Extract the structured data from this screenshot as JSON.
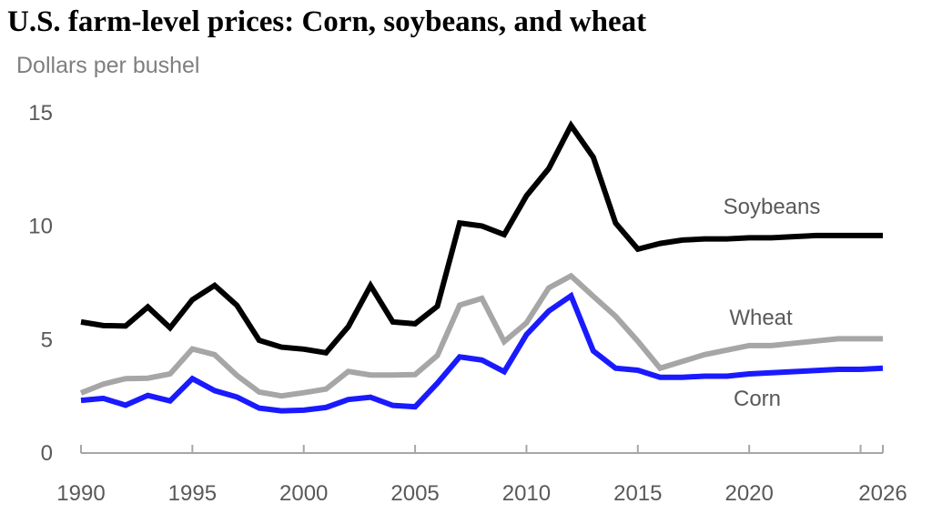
{
  "chart_data": {
    "type": "line",
    "title": "U.S. farm-level prices: Corn, soybeans, and wheat",
    "ylabel": "Dollars per bushel",
    "xlabel": "",
    "ylim": [
      0,
      15
    ],
    "xlim": [
      1990,
      2026
    ],
    "yticks": [
      "0",
      "5",
      "10",
      "15"
    ],
    "xticks": [
      "1990",
      "1995",
      "2000",
      "2005",
      "2010",
      "2015",
      "2020",
      "2026"
    ],
    "grid": false,
    "legend": "inline labels",
    "x": [
      1990,
      1991,
      1992,
      1993,
      1994,
      1995,
      1996,
      1997,
      1998,
      1999,
      2000,
      2001,
      2002,
      2003,
      2004,
      2005,
      2006,
      2007,
      2008,
      2009,
      2010,
      2011,
      2012,
      2013,
      2014,
      2015,
      2016,
      2017,
      2018,
      2019,
      2020,
      2021,
      2022,
      2023,
      2024,
      2025,
      2026
    ],
    "series": [
      {
        "name": "Soybeans",
        "color": "#000000",
        "values": [
          5.74,
          5.58,
          5.56,
          6.4,
          5.48,
          6.72,
          7.35,
          6.47,
          4.93,
          4.63,
          4.54,
          4.38,
          5.53,
          7.34,
          5.74,
          5.66,
          6.43,
          10.1,
          9.97,
          9.59,
          11.3,
          12.5,
          14.4,
          13.0,
          10.1,
          8.95,
          9.2,
          9.35,
          9.4,
          9.4,
          9.45,
          9.45,
          9.5,
          9.55,
          9.55,
          9.55,
          9.55
        ]
      },
      {
        "name": "Wheat",
        "color": "#a6a6a6",
        "values": [
          2.61,
          3.0,
          3.24,
          3.26,
          3.45,
          4.55,
          4.3,
          3.38,
          2.65,
          2.48,
          2.62,
          2.78,
          3.56,
          3.4,
          3.4,
          3.42,
          4.26,
          6.48,
          6.78,
          4.87,
          5.7,
          7.24,
          7.77,
          6.87,
          5.99,
          4.89,
          3.7,
          4.0,
          4.3,
          4.5,
          4.7,
          4.7,
          4.8,
          4.9,
          5.0,
          5.0,
          5.0
        ]
      },
      {
        "name": "Corn",
        "color": "#1a1aff",
        "values": [
          2.28,
          2.37,
          2.07,
          2.5,
          2.26,
          3.24,
          2.71,
          2.43,
          1.94,
          1.82,
          1.85,
          1.97,
          2.32,
          2.42,
          2.06,
          2.0,
          3.04,
          4.2,
          4.06,
          3.55,
          5.18,
          6.22,
          6.89,
          4.46,
          3.7,
          3.61,
          3.3,
          3.3,
          3.35,
          3.35,
          3.45,
          3.5,
          3.55,
          3.6,
          3.65,
          3.65,
          3.7
        ]
      }
    ]
  }
}
